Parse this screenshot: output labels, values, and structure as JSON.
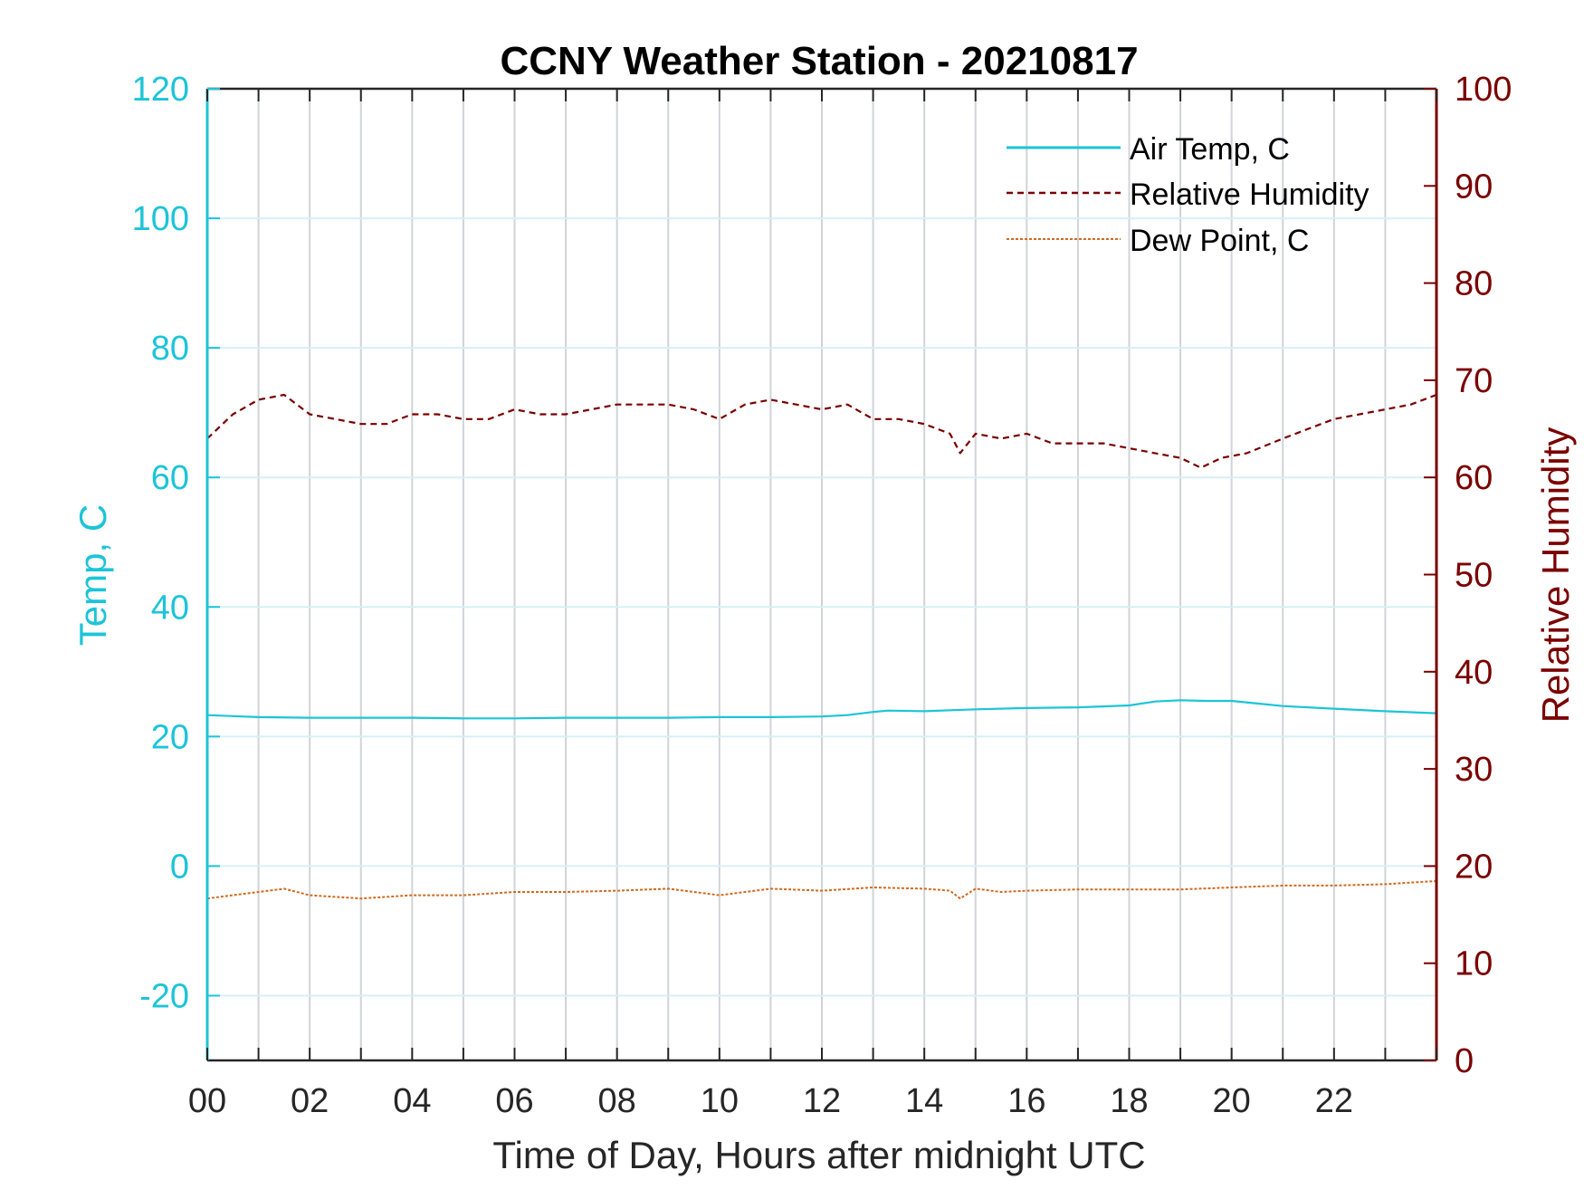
{
  "chart_data": {
    "type": "line",
    "title": "CCNY Weather Station - 20210817",
    "xlabel": "Time of Day, Hours after midnight UTC",
    "ylabel_left": "Temp, C",
    "ylabel_right": "Relative Humidity",
    "xlim": [
      0,
      24
    ],
    "ylim_left": [
      -30,
      120
    ],
    "ylim_right": [
      0,
      100
    ],
    "x_ticks": [
      0,
      2,
      4,
      6,
      8,
      10,
      12,
      14,
      16,
      18,
      20,
      22
    ],
    "x_tick_labels": [
      "00",
      "02",
      "04",
      "06",
      "08",
      "10",
      "12",
      "14",
      "16",
      "18",
      "20",
      "22"
    ],
    "y_left_ticks": [
      -20,
      0,
      20,
      40,
      60,
      80,
      100,
      120
    ],
    "y_left_tick_labels": [
      "-20",
      "0",
      "20",
      "40",
      "60",
      "80",
      "100",
      "120"
    ],
    "y_right_ticks": [
      0,
      10,
      20,
      30,
      40,
      50,
      60,
      70,
      80,
      90,
      100
    ],
    "y_right_tick_labels": [
      "0",
      "10",
      "20",
      "30",
      "40",
      "50",
      "60",
      "70",
      "80",
      "90",
      "100"
    ],
    "grid": true,
    "legend_position": "top-right",
    "colors": {
      "left_axis": "#1cc4d8",
      "right_axis": "#7a0000",
      "air_temp": "#1cc4d8",
      "humidity": "#7a0000",
      "dew_point": "#d2691e",
      "vgrid": "#d0d4d8",
      "hgrid": "#d6f0f5"
    },
    "series": [
      {
        "name": "Air Temp, C",
        "axis": "left",
        "style": "solid",
        "x": [
          0,
          1,
          2,
          3,
          4,
          5,
          6,
          7,
          8,
          9,
          10,
          11,
          12,
          12.5,
          13,
          13.3,
          14,
          15,
          16,
          17,
          18,
          18.5,
          19,
          19.5,
          20,
          21,
          22,
          23,
          24
        ],
        "values": [
          23.3,
          23.0,
          22.9,
          22.9,
          22.9,
          22.8,
          22.8,
          22.9,
          22.9,
          22.9,
          23.0,
          23.0,
          23.1,
          23.3,
          23.8,
          24.0,
          23.9,
          24.2,
          24.4,
          24.5,
          24.8,
          25.4,
          25.6,
          25.5,
          25.5,
          24.7,
          24.3,
          23.9,
          23.6
        ]
      },
      {
        "name": "Relative Humidity",
        "axis": "right",
        "style": "dashed",
        "x": [
          0,
          0.5,
          1,
          1.5,
          2,
          2.5,
          3,
          3.5,
          4,
          4.5,
          5,
          5.5,
          6,
          6.5,
          7,
          7.5,
          8,
          8.5,
          9,
          9.5,
          10,
          10.5,
          11,
          11.5,
          12,
          12.5,
          13,
          13.5,
          14,
          14.5,
          14.7,
          15,
          15.5,
          16,
          16.5,
          17,
          17.5,
          18,
          18.5,
          19,
          19.4,
          19.8,
          20.3,
          21,
          21.5,
          22,
          22.5,
          23,
          23.5,
          24
        ],
        "values": [
          64.0,
          66.5,
          68.0,
          68.5,
          66.5,
          66.0,
          65.5,
          65.5,
          66.5,
          66.5,
          66.0,
          66.0,
          67.0,
          66.5,
          66.5,
          67.0,
          67.5,
          67.5,
          67.5,
          67.0,
          66.0,
          67.5,
          68.0,
          67.5,
          67.0,
          67.5,
          66.0,
          66.0,
          65.5,
          64.5,
          62.5,
          64.5,
          64.0,
          64.5,
          63.5,
          63.5,
          63.5,
          63.0,
          62.5,
          62.0,
          61.0,
          62.0,
          62.5,
          64.0,
          65.0,
          66.0,
          66.5,
          67.0,
          67.5,
          68.5
        ]
      },
      {
        "name": "Dew Point, C",
        "axis": "left",
        "style": "dotted",
        "x": [
          0,
          1,
          1.5,
          2,
          3,
          4,
          5,
          6,
          7,
          8,
          9,
          10,
          11,
          12,
          13,
          14,
          14.5,
          14.7,
          15,
          15.5,
          16,
          17,
          18,
          19,
          20,
          21,
          22,
          23,
          24
        ],
        "values": [
          -5.0,
          -4.0,
          -3.5,
          -4.5,
          -5.0,
          -4.5,
          -4.5,
          -4.0,
          -4.0,
          -3.8,
          -3.5,
          -4.5,
          -3.5,
          -3.8,
          -3.3,
          -3.5,
          -3.8,
          -5.0,
          -3.5,
          -4.0,
          -3.8,
          -3.6,
          -3.6,
          -3.6,
          -3.3,
          -3.0,
          -3.0,
          -2.8,
          -2.3
        ]
      }
    ]
  }
}
